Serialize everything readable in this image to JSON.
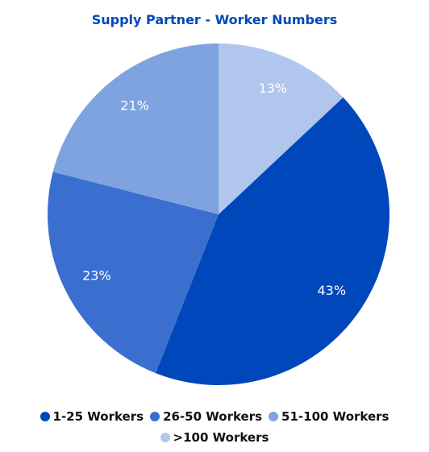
{
  "chart_data": {
    "type": "pie",
    "title": "Supply Partner - Worker Numbers",
    "categories": [
      "1-25 Workers",
      "26-50 Workers",
      "51-100 Workers",
      ">100 Workers"
    ],
    "values": [
      43,
      23,
      21,
      13
    ],
    "value_labels": [
      "43%",
      "23%",
      "21%",
      "13%"
    ],
    "colors": [
      "#0047bb",
      "#3a6fd0",
      "#7ea3df",
      "#b1c6ec"
    ],
    "legend": "bottom"
  }
}
